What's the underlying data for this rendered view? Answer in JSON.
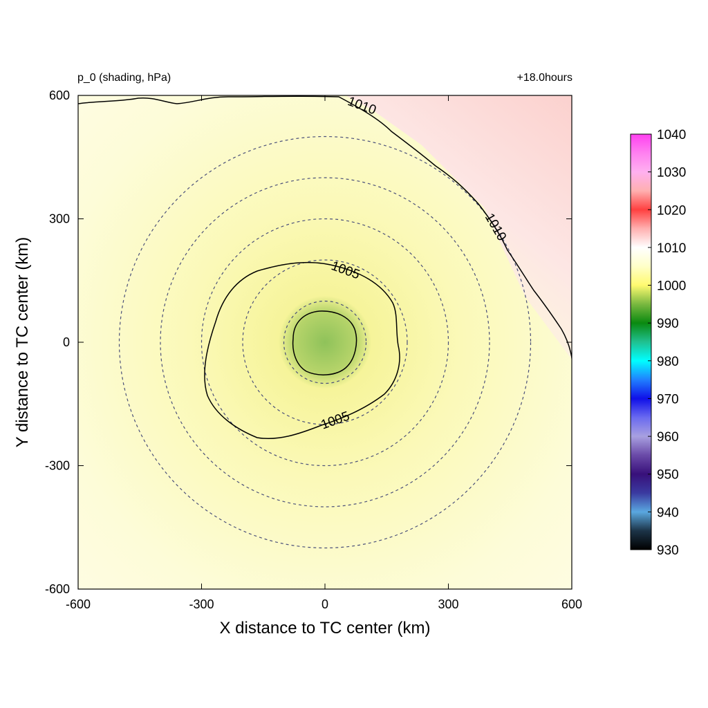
{
  "figure": {
    "top_left_label": "p_0 (shading, hPa)",
    "top_right_label": "+18.0hours"
  },
  "colors": {
    "contour_line": "#000000",
    "range_circle": "#4a4f7a",
    "background_pale_yellow": "#fdfbd2",
    "center_green": "#8fc25a",
    "northeast_pink": "#fbd3d0"
  },
  "chart_data": {
    "type": "heatmap",
    "title": "",
    "xlabel": "X distance to TC center (km)",
    "ylabel": "Y distance to TC center (km)",
    "xlim": [
      -600,
      600
    ],
    "ylim": [
      -600,
      600
    ],
    "x_ticks": [
      -600,
      -300,
      0,
      300,
      600
    ],
    "y_ticks": [
      -600,
      -300,
      0,
      300,
      600
    ],
    "grid": false,
    "field": "p_0",
    "units": "hPa",
    "range_circles_km": [
      100,
      200,
      300,
      400,
      500
    ],
    "contours": [
      {
        "level": 1000,
        "label": "",
        "description_points_km": [
          [
            -75,
            0
          ],
          [
            -50,
            48
          ],
          [
            0,
            75
          ],
          [
            50,
            52
          ],
          [
            78,
            0
          ],
          [
            60,
            -55
          ],
          [
            0,
            -78
          ],
          [
            -55,
            -60
          ]
        ]
      },
      {
        "level": 1005,
        "label": "1005",
        "label_positions_km": [
          [
            50,
            175
          ],
          [
            25,
            -190
          ]
        ]
      },
      {
        "level": 1010,
        "label": "1010",
        "label_positions_km": [
          [
            90,
            575
          ],
          [
            415,
            280
          ]
        ]
      }
    ],
    "colorbar": {
      "min": 930,
      "max": 1040,
      "tick_labels": [
        "1040",
        "1030",
        "1020",
        "1010",
        "1000",
        "990",
        "980",
        "970",
        "960",
        "950",
        "940",
        "930"
      ],
      "stops": [
        {
          "value": 930,
          "color": "#000000"
        },
        {
          "value": 935,
          "color": "#1c3448"
        },
        {
          "value": 940,
          "color": "#5aa8e0"
        },
        {
          "value": 945,
          "color": "#3a3aa0"
        },
        {
          "value": 950,
          "color": "#38107a"
        },
        {
          "value": 955,
          "color": "#6a4aa8"
        },
        {
          "value": 960,
          "color": "#a8a0e0"
        },
        {
          "value": 965,
          "color": "#6a6af0"
        },
        {
          "value": 970,
          "color": "#1010e8"
        },
        {
          "value": 975,
          "color": "#2080ff"
        },
        {
          "value": 980,
          "color": "#00ffff"
        },
        {
          "value": 985,
          "color": "#20c090"
        },
        {
          "value": 990,
          "color": "#0a8a10"
        },
        {
          "value": 995,
          "color": "#7ab840"
        },
        {
          "value": 1000,
          "color": "#fffa70"
        },
        {
          "value": 1005,
          "color": "#ffffc8"
        },
        {
          "value": 1010,
          "color": "#ffffff"
        },
        {
          "value": 1015,
          "color": "#ffb0b0"
        },
        {
          "value": 1020,
          "color": "#ff4040"
        },
        {
          "value": 1025,
          "color": "#ffb0b0"
        },
        {
          "value": 1030,
          "color": "#ffb0f0"
        },
        {
          "value": 1035,
          "color": "#ff80f0"
        },
        {
          "value": 1040,
          "color": "#ff40f0"
        }
      ]
    }
  }
}
